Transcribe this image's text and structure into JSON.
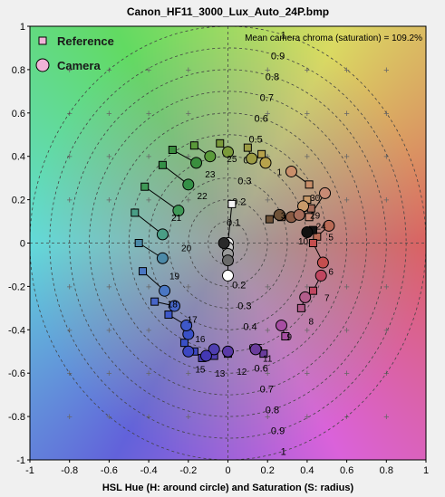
{
  "chart_data": {
    "type": "scatter",
    "title": "Canon_HF11_3000_Lux_Auto_24P.bmp",
    "xlabel": "HSL Hue (H: around circle) and Saturation (S: radius)",
    "ylabel": "",
    "xlim": [
      -1,
      1
    ],
    "ylim": [
      -1,
      1
    ],
    "xticks": [
      "-1",
      "-0.8",
      "-0.6",
      "-0.4",
      "-0.2",
      "0",
      "0.2",
      "0.4",
      "0.6",
      "0.8",
      "1"
    ],
    "yticks": [
      "1",
      "0.8",
      "0.6",
      "0.4",
      "0.2",
      "0",
      "-0.2",
      "-0.4",
      "-0.6",
      "-0.8",
      "-1"
    ],
    "grid": true,
    "legend_position": "top-left",
    "annotation": "Mean camera chroma (saturation) = 109.2%",
    "ring_labels_upper": [
      "1",
      "0.9",
      "0.8",
      "0.7",
      "0.6",
      "0.5",
      "0.4",
      "0.3",
      "0.2",
      "0.1"
    ],
    "ring_labels_lower": [
      "0.2",
      "0.3",
      "0.4",
      "0.5",
      "0.6",
      "0.7",
      "0.8",
      "0.9",
      "1"
    ],
    "series": [
      {
        "name": "Reference",
        "marker": "square"
      },
      {
        "name": "Camera",
        "marker": "circle"
      }
    ],
    "patches": [
      {
        "id": "1",
        "ref": [
          0.41,
          0.27
        ],
        "cam": [
          0.32,
          0.33
        ],
        "color": "#c98f6a"
      },
      {
        "id": "2",
        "ref": [
          0.41,
          0.12
        ],
        "cam": [
          0.49,
          0.23
        ],
        "color": "#c88a74"
      },
      {
        "id": "3",
        "ref": [
          0.21,
          0.11
        ],
        "cam": [
          0.26,
          0.13
        ],
        "color": "#6f5238"
      },
      {
        "id": "4",
        "ref": [
          0.27,
          0.12
        ],
        "cam": [
          0.32,
          0.12
        ],
        "color": "#8a5b44"
      },
      {
        "id": "5",
        "ref": [
          0.45,
          0.03
        ],
        "cam": [
          0.51,
          0.08
        ],
        "color": "#b96a55"
      },
      {
        "id": "6",
        "ref": [
          0.43,
          0.0
        ],
        "cam": [
          0.48,
          -0.09
        ],
        "color": "#c44e4e"
      },
      {
        "id": "7",
        "ref": [
          0.43,
          -0.22
        ],
        "cam": [
          0.47,
          -0.15
        ],
        "color": "#c04660"
      },
      {
        "id": "8",
        "ref": [
          0.37,
          -0.3
        ],
        "cam": [
          0.39,
          -0.25
        ],
        "color": "#b25d8b"
      },
      {
        "id": "9",
        "ref": [
          0.29,
          -0.43
        ],
        "cam": [
          0.27,
          -0.38
        ],
        "color": "#a74ea3"
      },
      {
        "id": "10",
        "ref": [
          0.43,
          0.06
        ],
        "cam": [
          0.4,
          0.05
        ],
        "color": "#111111"
      },
      {
        "id": "11",
        "ref": [
          0.18,
          -0.51
        ],
        "cam": [
          0.14,
          -0.49
        ],
        "color": "#6a3c9c"
      },
      {
        "id": "12",
        "ref": [
          0.0,
          -0.51
        ],
        "cam": [
          0.0,
          -0.5
        ],
        "color": "#5a3aa8"
      },
      {
        "id": "13",
        "ref": [
          -0.07,
          -0.52
        ],
        "cam": [
          -0.07,
          -0.49
        ],
        "color": "#4e3eb0"
      },
      {
        "id": "14",
        "ref": [
          -0.13,
          -0.53
        ],
        "cam": [
          -0.11,
          -0.52
        ],
        "color": "#4438b4"
      },
      {
        "id": "15",
        "ref": [
          -0.17,
          -0.5
        ],
        "cam": [
          -0.2,
          -0.5
        ],
        "color": "#3d47c2"
      },
      {
        "id": "16",
        "ref": [
          -0.22,
          -0.46
        ],
        "cam": [
          -0.2,
          -0.42
        ],
        "color": "#3a50c6"
      },
      {
        "id": "17",
        "ref": [
          -0.3,
          -0.33
        ],
        "cam": [
          -0.21,
          -0.38
        ],
        "color": "#3e58c9"
      },
      {
        "id": "18",
        "ref": [
          -0.37,
          -0.27
        ],
        "cam": [
          -0.27,
          -0.29
        ],
        "color": "#4766c8"
      },
      {
        "id": "19",
        "ref": [
          -0.43,
          -0.13
        ],
        "cam": [
          -0.32,
          -0.22
        ],
        "color": "#4a77c4"
      },
      {
        "id": "20",
        "ref": [
          -0.45,
          0.0
        ],
        "cam": [
          -0.33,
          -0.07
        ],
        "color": "#4c8aa8"
      },
      {
        "id": "21",
        "ref": [
          -0.47,
          0.14
        ],
        "cam": [
          -0.33,
          0.04
        ],
        "color": "#4a9e86"
      },
      {
        "id": "22",
        "ref": [
          -0.42,
          0.26
        ],
        "cam": [
          -0.25,
          0.15
        ],
        "color": "#3f9a57"
      },
      {
        "id": "23",
        "ref": [
          -0.33,
          0.36
        ],
        "cam": [
          -0.2,
          0.27
        ],
        "color": "#349047"
      },
      {
        "id": "24",
        "ref": [
          -0.28,
          0.43
        ],
        "cam": [
          -0.16,
          0.37
        ],
        "color": "#3a8e3e"
      },
      {
        "id": "25",
        "ref": [
          -0.17,
          0.45
        ],
        "cam": [
          -0.09,
          0.4
        ],
        "color": "#5a9a3a"
      },
      {
        "id": "26",
        "ref": [
          -0.04,
          0.46
        ],
        "cam": [
          0.0,
          0.42
        ],
        "color": "#7a9a3a"
      },
      {
        "id": "27",
        "ref": [
          0.1,
          0.44
        ],
        "cam": [
          0.12,
          0.39
        ],
        "color": "#9c9c43"
      },
      {
        "id": "28",
        "ref": [
          0.17,
          0.41
        ],
        "cam": [
          0.19,
          0.37
        ],
        "color": "#b7a24b"
      },
      {
        "id": "29",
        "ref": [
          0.4,
          0.2
        ],
        "cam": [
          0.38,
          0.17
        ],
        "color": "#c99a6a"
      },
      {
        "id": "30",
        "ref": [
          0.42,
          0.16
        ],
        "cam": [
          0.36,
          0.13
        ],
        "color": "#a66c5a"
      }
    ],
    "neutral_patches": [
      {
        "ref": [
          0.02,
          0.18
        ],
        "cam": [
          0.0,
          0.0
        ],
        "color": "#f4f4f4"
      },
      {
        "ref": [
          0.0,
          0.0
        ],
        "cam": [
          0.0,
          -0.02
        ],
        "color": "#c8c8c8"
      },
      {
        "ref": [
          0.0,
          -0.02
        ],
        "cam": [
          0.0,
          -0.05
        ],
        "color": "#9a9a9a"
      },
      {
        "ref": [
          0.0,
          -0.03
        ],
        "cam": [
          0.0,
          -0.08
        ],
        "color": "#6a6a6a"
      },
      {
        "ref": [
          0.0,
          -0.02
        ],
        "cam": [
          -0.02,
          0.0
        ],
        "color": "#2a2a2a"
      },
      {
        "ref": [
          0.0,
          -0.08
        ],
        "cam": [
          0.0,
          -0.15
        ],
        "color": "#ffffff"
      }
    ],
    "number_labels": [
      {
        "text": "1",
        "at": [
          0.26,
          0.33
        ]
      },
      {
        "text": "3",
        "at": [
          0.28,
          0.13
        ]
      },
      {
        "text": "5",
        "at": [
          0.52,
          0.03
        ]
      },
      {
        "text": "6",
        "at": [
          0.52,
          -0.13
        ]
      },
      {
        "text": "7",
        "at": [
          0.5,
          -0.25
        ]
      },
      {
        "text": "8",
        "at": [
          0.42,
          -0.36
        ]
      },
      {
        "text": "9",
        "at": [
          0.31,
          -0.43
        ]
      },
      {
        "text": "10",
        "at": [
          0.38,
          0.01
        ]
      },
      {
        "text": "11",
        "at": [
          0.2,
          -0.53
        ]
      },
      {
        "text": "12",
        "at": [
          0.07,
          -0.59
        ]
      },
      {
        "text": "13",
        "at": [
          -0.04,
          -0.6
        ]
      },
      {
        "text": "15",
        "at": [
          -0.14,
          -0.58
        ]
      },
      {
        "text": "16",
        "at": [
          -0.14,
          -0.44
        ]
      },
      {
        "text": "17",
        "at": [
          -0.18,
          -0.35
        ]
      },
      {
        "text": "18",
        "at": [
          -0.28,
          -0.28
        ]
      },
      {
        "text": "19",
        "at": [
          -0.27,
          -0.15
        ]
      },
      {
        "text": "20",
        "at": [
          -0.21,
          -0.02
        ]
      },
      {
        "text": "21",
        "at": [
          -0.26,
          0.12
        ]
      },
      {
        "text": "22",
        "at": [
          -0.13,
          0.22
        ]
      },
      {
        "text": "23",
        "at": [
          -0.09,
          0.32
        ]
      },
      {
        "text": "25",
        "at": [
          0.02,
          0.39
        ]
      },
      {
        "text": "24",
        "at": [
          0.47,
          0.08
        ]
      },
      {
        "text": "29",
        "at": [
          0.44,
          0.13
        ]
      },
      {
        "text": "30",
        "at": [
          0.44,
          0.21
        ]
      }
    ]
  }
}
